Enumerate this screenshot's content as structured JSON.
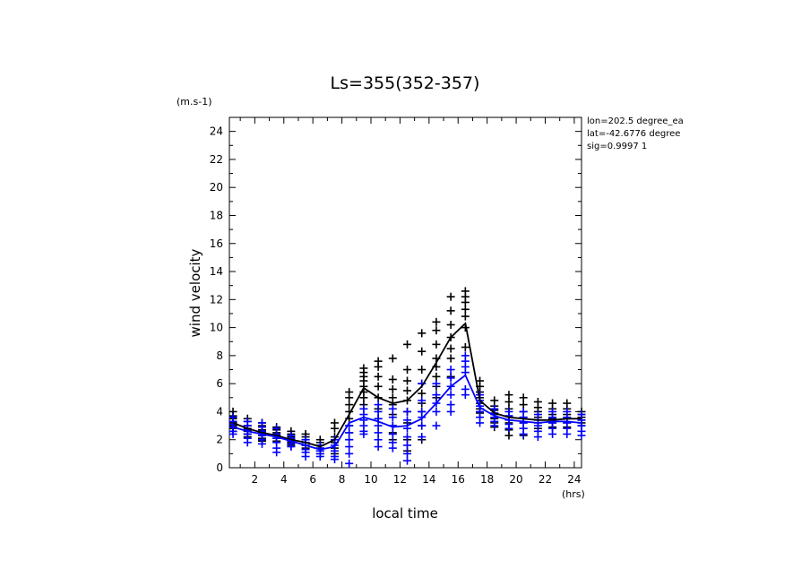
{
  "chart_data": {
    "type": "scatter",
    "title": "Ls=355(352-357)",
    "xlabel": "local time",
    "xunit": "(hrs)",
    "ylabel": "wind velocity",
    "yunit": "(m.s-1)",
    "xlim": [
      0.25,
      24.5
    ],
    "ylim": [
      0,
      25
    ],
    "xticks": [
      2,
      4,
      6,
      8,
      10,
      12,
      14,
      16,
      18,
      20,
      22,
      24
    ],
    "yticks": [
      0,
      2,
      4,
      6,
      8,
      10,
      12,
      14,
      16,
      18,
      20,
      22,
      24
    ],
    "grid": false,
    "info_lines": [
      "lon=202.5 degree_ea",
      "lat=-42.6776 degree",
      "sig=0.9997 1"
    ],
    "x": [
      0.5,
      1.5,
      2.5,
      3.5,
      4.5,
      5.5,
      6.5,
      7.5,
      8.5,
      9.5,
      10.5,
      11.5,
      12.5,
      13.5,
      14.5,
      15.5,
      16.5,
      17.5,
      18.5,
      19.5,
      20.5,
      21.5,
      22.5,
      23.5,
      24.5
    ],
    "series": [
      {
        "color": "#000000",
        "mean": [
          3.2,
          2.8,
          2.5,
          2.3,
          2.0,
          1.8,
          1.5,
          2.0,
          3.8,
          5.7,
          5.0,
          4.6,
          4.8,
          5.8,
          7.5,
          9.3,
          10.3,
          4.8,
          3.9,
          3.6,
          3.5,
          3.4,
          3.4,
          3.5,
          3.5
        ],
        "samples": [
          [
            4.0,
            3.7,
            3.5,
            3.3,
            3.2,
            3.0,
            2.8,
            2.6
          ],
          [
            3.5,
            3.3,
            3.0,
            2.8,
            2.6,
            2.4,
            2.2
          ],
          [
            3.2,
            3.0,
            2.7,
            2.5,
            2.3,
            2.1,
            1.9
          ],
          [
            2.9,
            2.7,
            2.5,
            2.3,
            2.1,
            1.9
          ],
          [
            2.6,
            2.4,
            2.2,
            2.0,
            1.8,
            1.6
          ],
          [
            2.4,
            2.2,
            2.0,
            1.8,
            1.6,
            1.4
          ],
          [
            2.0,
            1.8,
            1.6,
            1.4,
            1.2,
            1.0
          ],
          [
            3.2,
            2.8,
            2.2,
            1.8,
            1.4,
            1.0
          ],
          [
            5.4,
            5.0,
            4.5,
            4.0,
            3.5,
            3.0,
            2.5,
            2.0
          ],
          [
            7.1,
            6.8,
            6.5,
            6.2,
            5.8,
            5.4,
            5.0,
            4.5
          ],
          [
            7.6,
            7.2,
            6.5,
            5.8,
            5.0,
            4.2,
            3.5
          ],
          [
            7.8,
            6.3,
            5.6,
            5.0,
            4.5,
            3.8,
            3.0,
            2.5,
            2.0
          ],
          [
            8.8,
            7.0,
            6.2,
            5.5,
            4.8,
            4.0,
            3.2,
            2.0,
            1.2
          ],
          [
            9.6,
            8.3,
            7.0,
            6.0,
            5.3,
            4.6,
            4.0,
            3.0,
            2.0
          ],
          [
            10.4,
            9.8,
            8.8,
            7.8,
            7.2,
            6.5,
            5.8,
            5.0
          ],
          [
            12.2,
            11.2,
            10.2,
            9.3,
            8.5,
            7.8,
            6.5
          ],
          [
            12.6,
            12.2,
            11.8,
            11.3,
            10.8,
            10.0,
            8.6
          ],
          [
            6.2,
            5.8,
            5.4,
            5.0,
            4.6,
            4.2,
            3.9
          ],
          [
            4.8,
            4.4,
            4.1,
            3.8,
            3.5,
            3.2,
            2.9
          ],
          [
            5.2,
            4.7,
            4.2,
            3.7,
            3.2,
            2.7,
            2.3
          ],
          [
            5.0,
            4.5,
            4.0,
            3.6,
            3.2,
            2.8,
            2.3
          ],
          [
            4.7,
            4.3,
            4.0,
            3.6,
            3.2,
            2.8
          ],
          [
            4.6,
            4.2,
            3.8,
            3.5,
            3.2,
            2.9
          ],
          [
            4.6,
            4.2,
            3.8,
            3.5,
            3.2,
            2.9
          ],
          [
            4.0,
            3.8,
            3.6,
            3.4,
            3.2,
            3.0
          ]
        ]
      },
      {
        "color": "#0000ff",
        "mean": [
          2.9,
          2.6,
          2.4,
          2.2,
          1.9,
          1.6,
          1.3,
          1.5,
          3.2,
          3.6,
          3.3,
          2.9,
          3.0,
          3.5,
          4.6,
          5.8,
          6.6,
          4.3,
          3.7,
          3.4,
          3.3,
          3.2,
          3.3,
          3.3,
          3.2
        ],
        "samples": [
          [
            3.6,
            3.3,
            3.1,
            2.9,
            2.6,
            2.4
          ],
          [
            3.3,
            3.0,
            2.7,
            2.4,
            2.1,
            1.8
          ],
          [
            3.2,
            2.9,
            2.6,
            2.3,
            2.0,
            1.7
          ],
          [
            2.8,
            2.4,
            2.1,
            1.8,
            1.4,
            1.1
          ],
          [
            2.3,
            2.1,
            1.9,
            1.7,
            1.5
          ],
          [
            2.0,
            1.8,
            1.6,
            1.3,
            1.1,
            0.8
          ],
          [
            1.6,
            1.4,
            1.2,
            1.0,
            0.8
          ],
          [
            2.0,
            1.6,
            1.2,
            0.8,
            0.6
          ],
          [
            3.0,
            2.5,
            2.0,
            1.5,
            1.0,
            0.3
          ],
          [
            4.2,
            3.8,
            3.4,
            3.0,
            2.6,
            2.4
          ],
          [
            4.5,
            4.0,
            3.5,
            3.0,
            2.5,
            2.0,
            1.5
          ],
          [
            4.2,
            3.6,
            3.0,
            2.4,
            1.8,
            1.4
          ],
          [
            4.0,
            3.4,
            2.8,
            2.2,
            1.6,
            1.0,
            0.5
          ],
          [
            6.0,
            4.8,
            4.0,
            3.6,
            3.0,
            2.2
          ],
          [
            6.0,
            5.2,
            4.6,
            4.0,
            3.0
          ],
          [
            7.0,
            6.4,
            5.8,
            5.2,
            4.5,
            4.0
          ],
          [
            8.0,
            7.6,
            7.2,
            6.8,
            5.6,
            5.2
          ],
          [
            5.2,
            4.8,
            4.4,
            4.0,
            3.6,
            3.2
          ],
          [
            4.2,
            3.9,
            3.6,
            3.3,
            3.0
          ],
          [
            4.0,
            3.7,
            3.4,
            3.1,
            2.8
          ],
          [
            4.0,
            3.6,
            3.2,
            2.8,
            2.4
          ],
          [
            3.8,
            3.4,
            3.0,
            2.6,
            2.2
          ],
          [
            4.0,
            3.6,
            3.2,
            2.8,
            2.4
          ],
          [
            4.0,
            3.6,
            3.2,
            2.8,
            2.4
          ],
          [
            3.8,
            3.4,
            3.0,
            2.6,
            2.3
          ]
        ]
      }
    ]
  }
}
